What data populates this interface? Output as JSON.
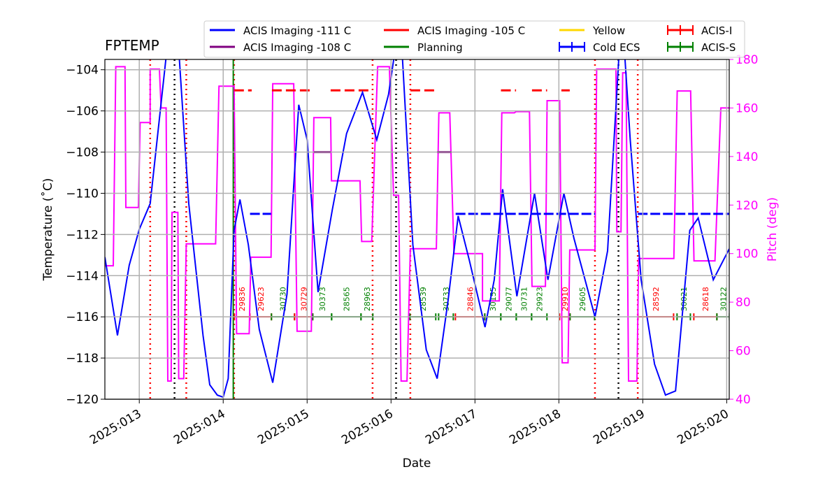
{
  "chart_data": {
    "type": "line",
    "title": "FPTEMP",
    "xlabel": "Date",
    "ylabel": "Temperature (˚C)",
    "y2label": "Pitch (deg)",
    "y2color": "#ff00ff",
    "grid": true,
    "xlim": [
      12.59,
      20.03
    ],
    "xticks": [
      {
        "value": 13,
        "label": "2025:013"
      },
      {
        "value": 14,
        "label": "2025:014"
      },
      {
        "value": 15,
        "label": "2025:015"
      },
      {
        "value": 16,
        "label": "2025:016"
      },
      {
        "value": 17,
        "label": "2025:017"
      },
      {
        "value": 18,
        "label": "2025:018"
      },
      {
        "value": 19,
        "label": "2025:019"
      },
      {
        "value": 20,
        "label": "2025:020"
      }
    ],
    "ylim": [
      -120,
      -103.5
    ],
    "yticks": [
      {
        "value": -120,
        "label": "−120"
      },
      {
        "value": -118,
        "label": "−118"
      },
      {
        "value": -116,
        "label": "−116"
      },
      {
        "value": -114,
        "label": "−114"
      },
      {
        "value": -112,
        "label": "−112"
      },
      {
        "value": -110,
        "label": "−110"
      },
      {
        "value": -108,
        "label": "−108"
      },
      {
        "value": -106,
        "label": "−106"
      },
      {
        "value": -104,
        "label": "−104"
      }
    ],
    "y2lim": [
      40,
      180
    ],
    "y2ticks": [
      40,
      60,
      80,
      100,
      120,
      140,
      160,
      180
    ],
    "series": [
      {
        "color": "#0000ff",
        "width": 2,
        "x": [
          12.59,
          12.74,
          12.88,
          13.0,
          13.13,
          13.33,
          13.47,
          13.59,
          13.76,
          13.84,
          13.93,
          14.0,
          14.06,
          14.13,
          14.2,
          14.3,
          14.43,
          14.59,
          14.76,
          14.9,
          15.0,
          15.13,
          15.3,
          15.47,
          15.66,
          15.83,
          15.97,
          16.05,
          16.13,
          16.26,
          16.42,
          16.55,
          16.68,
          16.8,
          16.93,
          17.12,
          17.23,
          17.33,
          17.5,
          17.71,
          17.87,
          18.06,
          18.18,
          18.43,
          18.58,
          18.72,
          18.78,
          18.85,
          18.98,
          19.14,
          19.27,
          19.39,
          19.56,
          19.66,
          19.84,
          20.03
        ],
        "values": [
          -113.1,
          -116.9,
          -113.5,
          -111.75,
          -110.5,
          -103.0,
          -103.0,
          -110.5,
          -116.9,
          -119.3,
          -119.8,
          -119.9,
          -119.0,
          -111.8,
          -110.3,
          -112.5,
          -116.6,
          -119.2,
          -114.9,
          -105.7,
          -107.4,
          -114.8,
          -110.8,
          -107.1,
          -105.1,
          -107.4,
          -105.2,
          -103.0,
          -103.0,
          -112.5,
          -117.6,
          -119.0,
          -115.2,
          -111.1,
          -113.2,
          -116.5,
          -114.2,
          -109.8,
          -115.0,
          -110.0,
          -114.2,
          -110.0,
          -112.2,
          -116.0,
          -112.8,
          -103.0,
          -103.0,
          -107.4,
          -114.2,
          -118.3,
          -119.8,
          -119.6,
          -111.8,
          -111.2,
          -114.2,
          -112.7
        ]
      },
      {
        "color": "#ff00ff",
        "width": 2,
        "axis": "y2",
        "x": [
          12.59,
          12.69,
          12.72,
          12.83,
          12.84,
          12.99,
          13.01,
          13.13,
          13.13,
          13.24,
          13.26,
          13.32,
          13.34,
          13.38,
          13.39,
          13.46,
          13.47,
          13.53,
          13.56,
          13.91,
          13.95,
          14.13,
          14.16,
          14.31,
          14.33,
          14.57,
          14.59,
          14.84,
          14.88,
          15.05,
          15.08,
          15.28,
          15.29,
          15.63,
          15.65,
          15.77,
          15.84,
          15.98,
          16.03,
          16.09,
          16.12,
          16.19,
          16.23,
          16.54,
          16.57,
          16.7,
          16.75,
          17.09,
          17.09,
          17.29,
          17.32,
          17.47,
          17.49,
          17.65,
          17.68,
          17.84,
          17.86,
          18.01,
          18.04,
          18.11,
          18.13,
          18.43,
          18.45,
          18.68,
          18.69,
          18.74,
          18.76,
          18.8,
          18.83,
          18.93,
          18.95,
          19.37,
          19.41,
          19.57,
          19.61,
          19.86,
          19.93,
          20.03
        ],
        "values": [
          95,
          95,
          177,
          177,
          119,
          119,
          154,
          154,
          176,
          176,
          160,
          160,
          47.5,
          47.5,
          117,
          117,
          48.5,
          48.5,
          104,
          104,
          169,
          169,
          67,
          67,
          98.5,
          98.5,
          170,
          170,
          68,
          68,
          156,
          156,
          130,
          130,
          105,
          105,
          177,
          177,
          124,
          124,
          47.5,
          47.5,
          102,
          102,
          158,
          158,
          100,
          100,
          80.5,
          80.5,
          158,
          158,
          158.5,
          158.5,
          86.5,
          86.5,
          163,
          163,
          55,
          55,
          101.5,
          101.5,
          176,
          176,
          109,
          109,
          174.5,
          174.5,
          47.5,
          47.5,
          98,
          98,
          167,
          167,
          97,
          97,
          160,
          160
        ]
      },
      {
        "color": "#0000ff",
        "width": 3,
        "dash": "14 4",
        "x": [
          14.32,
          14.57,
          null,
          16.77,
          18.43,
          null,
          18.94,
          20.03
        ],
        "values": [
          -111,
          -111,
          null,
          -111,
          -111,
          null,
          -111,
          -111
        ]
      },
      {
        "color": "#800080",
        "width": 3,
        "x": [
          15.08,
          15.28,
          null,
          16.55,
          16.72
        ],
        "values": [
          -108,
          -108,
          null,
          -108,
          -108
        ]
      },
      {
        "color": "#ff0000",
        "width": 3,
        "dash": "14 6",
        "x": [
          14.13,
          14.34,
          null,
          14.58,
          15.07,
          null,
          15.28,
          15.78,
          null,
          16.23,
          16.54,
          null,
          17.31,
          17.49,
          null,
          17.68,
          17.86,
          null,
          18.03,
          18.13
        ],
        "values": [
          -105,
          -105,
          null,
          -105,
          -105,
          null,
          -105,
          -105,
          null,
          -105,
          -105,
          null,
          -105,
          -105,
          null,
          -105,
          -105,
          null,
          -105,
          -105
        ]
      }
    ],
    "vlines": [
      {
        "color": "#ff0000",
        "x": [
          13.13,
          13.56,
          14.13,
          15.78,
          16.23,
          18.43,
          18.94
        ]
      },
      {
        "color": "#000000",
        "x": [
          13.42,
          16.06,
          18.71
        ]
      },
      {
        "color": "#008000",
        "x": [
          14.12
        ],
        "solid": true
      }
    ],
    "obsids": {
      "level": -116,
      "colors": {
        "I": "#ff0000",
        "S": "#008000"
      },
      "items": [
        {
          "obsid": "29836",
          "inst": "I",
          "start": 14.133,
          "stop": 14.317
        },
        {
          "obsid": "29623",
          "inst": "I",
          "start": 14.317,
          "stop": 14.575
        },
        {
          "obsid": "30730",
          "inst": "S",
          "start": 14.575,
          "stop": 14.85
        },
        {
          "obsid": "30729",
          "inst": "I",
          "start": 14.85,
          "stop": 15.067
        },
        {
          "obsid": "30373",
          "inst": "S",
          "start": 15.067,
          "stop": 15.292
        },
        {
          "obsid": "28565",
          "inst": "S",
          "start": 15.292,
          "stop": 15.642
        },
        {
          "obsid": "28963",
          "inst": "S",
          "start": 15.642,
          "stop": 15.783
        },
        {
          "obsid": "28539",
          "inst": "S",
          "start": 16.225,
          "stop": 16.533
        },
        {
          "obsid": "30733",
          "inst": "S",
          "start": 16.567,
          "stop": 16.742
        },
        {
          "obsid": "28846",
          "inst": "I",
          "start": 16.767,
          "stop": 17.117
        },
        {
          "obsid": "30155",
          "inst": "S",
          "start": 17.117,
          "stop": 17.308
        },
        {
          "obsid": "29077",
          "inst": "S",
          "start": 17.308,
          "stop": 17.492
        },
        {
          "obsid": "30731",
          "inst": "S",
          "start": 17.492,
          "stop": 17.675
        },
        {
          "obsid": "29923",
          "inst": "S",
          "start": 17.675,
          "stop": 17.858
        },
        {
          "obsid": "29910",
          "inst": "I",
          "start": 18.008,
          "stop": 18.133
        },
        {
          "obsid": "29605",
          "inst": "S",
          "start": 18.133,
          "stop": 18.425
        },
        {
          "obsid": "28592",
          "inst": "I",
          "start": 18.942,
          "stop": 19.367
        },
        {
          "obsid": "30021",
          "inst": "S",
          "start": 19.408,
          "stop": 19.567
        },
        {
          "obsid": "28618",
          "inst": "I",
          "start": 19.608,
          "stop": 19.883
        },
        {
          "obsid": "30122",
          "inst": "S",
          "start": 19.883,
          "stop": 20.033
        }
      ]
    },
    "legend": [
      {
        "name": "ACIS Imaging -111 C",
        "color": "#0000ff",
        "marker": "line"
      },
      {
        "name": "ACIS Imaging -108 C",
        "color": "#800080",
        "marker": "line"
      },
      {
        "name": "ACIS Imaging -105 C",
        "color": "#ff0000",
        "marker": "line"
      },
      {
        "name": "Planning",
        "color": "#008000",
        "marker": "line"
      },
      {
        "name": "Yellow",
        "color": "#ffd700",
        "marker": "line"
      },
      {
        "name": "Cold ECS",
        "color": "#0000ff",
        "marker": "errorbar"
      },
      {
        "name": "ACIS-I",
        "color": "#ff0000",
        "marker": "errorbar"
      },
      {
        "name": "ACIS-S",
        "color": "#008000",
        "marker": "errorbar"
      }
    ]
  }
}
